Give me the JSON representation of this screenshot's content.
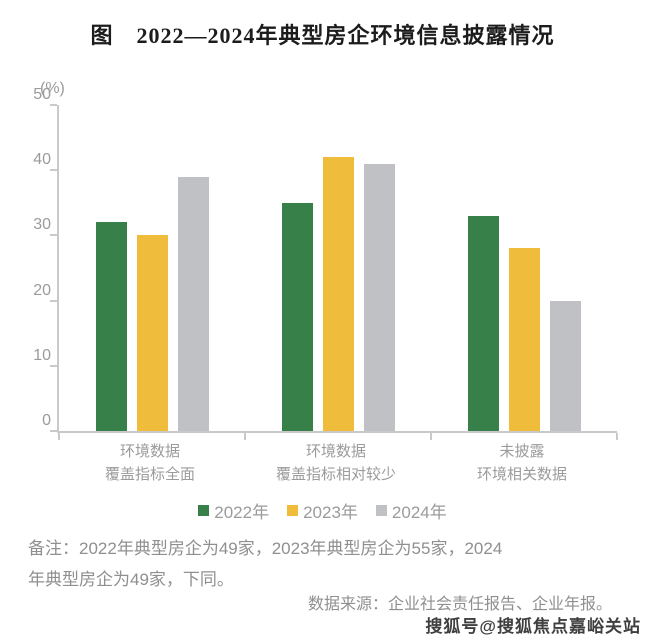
{
  "title": "图　2022—2024年典型房企环境信息披露情况",
  "chart_data": {
    "type": "bar",
    "unit_label": "(%)",
    "categories": [
      [
        "环境数据",
        "覆盖指标全面"
      ],
      [
        "环境数据",
        "覆盖指标相对较少"
      ],
      [
        "未披露",
        "环境相关数据"
      ]
    ],
    "series": [
      {
        "name": "2022年",
        "color": "#37804a",
        "values": [
          32,
          35,
          33
        ]
      },
      {
        "name": "2023年",
        "color": "#efbc3b",
        "values": [
          30,
          42,
          28
        ]
      },
      {
        "name": "2024年",
        "color": "#bfc1c4",
        "values": [
          39,
          41,
          20
        ]
      }
    ],
    "ylim": [
      0,
      50
    ],
    "yticks": [
      0,
      10,
      20,
      30,
      40,
      50
    ],
    "grid": false,
    "legend_position": "bottom"
  },
  "note": {
    "lines": [
      "备注：2022年典型房企为49家，2023年典型房企为55家，2024",
      "年典型房企为49家，下同。"
    ]
  },
  "source": "数据来源：企业社会责任报告、企业年报。",
  "watermark": "搜狐号@搜狐焦点嘉峪关站"
}
